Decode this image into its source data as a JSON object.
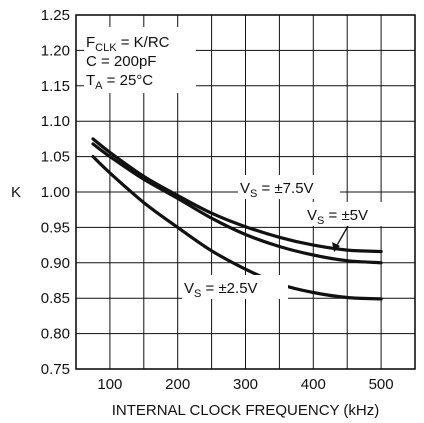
{
  "chart_data": {
    "type": "line",
    "title": "",
    "xlabel": "INTERNAL CLOCK FREQUENCY (kHz)",
    "ylabel": "K",
    "xlim": [
      50,
      550
    ],
    "ylim": [
      0.75,
      1.25
    ],
    "x_ticks": [
      {
        "value": 100,
        "label": "100"
      },
      {
        "value": 200,
        "label": "200"
      },
      {
        "value": 300,
        "label": "300"
      },
      {
        "value": 400,
        "label": "400"
      },
      {
        "value": 500,
        "label": "500"
      }
    ],
    "y_ticks": [
      {
        "value": 0.75,
        "label": "0.75"
      },
      {
        "value": 0.8,
        "label": "0.80"
      },
      {
        "value": 0.85,
        "label": "0.85"
      },
      {
        "value": 0.9,
        "label": "0.90"
      },
      {
        "value": 0.95,
        "label": "0.95"
      },
      {
        "value": 1.0,
        "label": "1.00"
      },
      {
        "value": 1.05,
        "label": "1.05"
      },
      {
        "value": 1.1,
        "label": "1.10"
      },
      {
        "value": 1.15,
        "label": "1.15"
      },
      {
        "value": 1.2,
        "label": "1.20"
      },
      {
        "value": 1.25,
        "label": "1.25"
      }
    ],
    "grid": true,
    "conditions": {
      "fclk_main": "F",
      "fclk_sub": "CLK",
      "fclk_rest": " = K/RC",
      "cap": "C = 200pF",
      "ta_main": "T",
      "ta_sub": "A",
      "ta_rest": " = 25°C"
    },
    "series": [
      {
        "name": "±7.5V",
        "label_main": "V",
        "label_sub": "S",
        "label_rest": " = ±7.5V",
        "x": [
          75,
          100,
          150,
          200,
          250,
          300,
          350,
          400,
          450,
          500
        ],
        "y": [
          1.075,
          1.056,
          1.022,
          0.995,
          0.97,
          0.951,
          0.936,
          0.925,
          0.918,
          0.916
        ]
      },
      {
        "name": "±5V",
        "label_main": "V",
        "label_sub": "S",
        "label_rest": " = ±5V",
        "x": [
          75,
          100,
          150,
          200,
          250,
          300,
          350,
          400,
          450,
          500
        ],
        "y": [
          1.068,
          1.05,
          1.018,
          0.991,
          0.963,
          0.94,
          0.923,
          0.911,
          0.903,
          0.9
        ]
      },
      {
        "name": "±2.5V",
        "label_main": "V",
        "label_sub": "S",
        "label_rest": " = ±2.5V",
        "x": [
          75,
          100,
          150,
          200,
          250,
          300,
          350,
          400,
          450,
          500
        ],
        "y": [
          1.05,
          1.027,
          0.985,
          0.95,
          0.917,
          0.891,
          0.87,
          0.858,
          0.851,
          0.849
        ]
      }
    ]
  }
}
